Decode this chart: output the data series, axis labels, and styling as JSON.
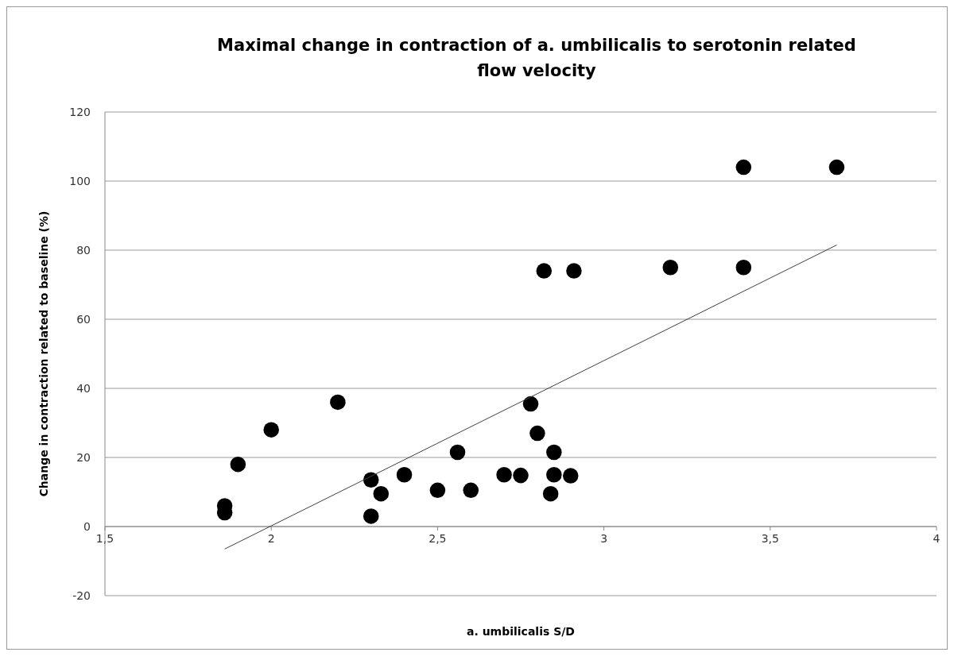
{
  "chart_data": {
    "type": "scatter",
    "title": "Maximal change in contraction of a. umbilicalis to serotonin related flow velocity",
    "xlabel": "a. umbilicalis S/D",
    "ylabel": "Change in contraction related to baseline (%)",
    "xlim": [
      1.5,
      4
    ],
    "ylim": [
      -20,
      120
    ],
    "xticks": [
      {
        "value": 1.5,
        "label": "1,5"
      },
      2,
      {
        "value": 2.5,
        "label": "2,5"
      },
      3,
      {
        "value": 3.5,
        "label": "3,5"
      },
      4
    ],
    "yticks": [
      -20,
      0,
      20,
      40,
      60,
      80,
      100,
      120
    ],
    "grid": "y",
    "marker": "circle",
    "series": [
      {
        "color": "#000000",
        "x": [
          1.86,
          1.86,
          1.9,
          2.0,
          2.2,
          2.3,
          2.3,
          2.33,
          2.4,
          2.5,
          2.56,
          2.6,
          2.7,
          2.75,
          2.78,
          2.8,
          2.85,
          2.85,
          2.84,
          2.9,
          2.82,
          2.91,
          3.2,
          3.42,
          3.42,
          3.7
        ],
        "values": [
          6,
          4,
          18,
          28,
          36,
          13.5,
          3,
          9.5,
          15,
          10.5,
          21.5,
          10.5,
          15,
          14.8,
          35.5,
          27,
          21.5,
          15,
          9.5,
          14.7,
          74,
          74,
          75,
          104,
          75,
          104
        ]
      },
      {
        "type": "line",
        "color": "#404040",
        "marker": "none",
        "line_style": "solid",
        "x": [
          1.86,
          3.7
        ],
        "values": [
          -6.5,
          81.5
        ]
      }
    ]
  }
}
